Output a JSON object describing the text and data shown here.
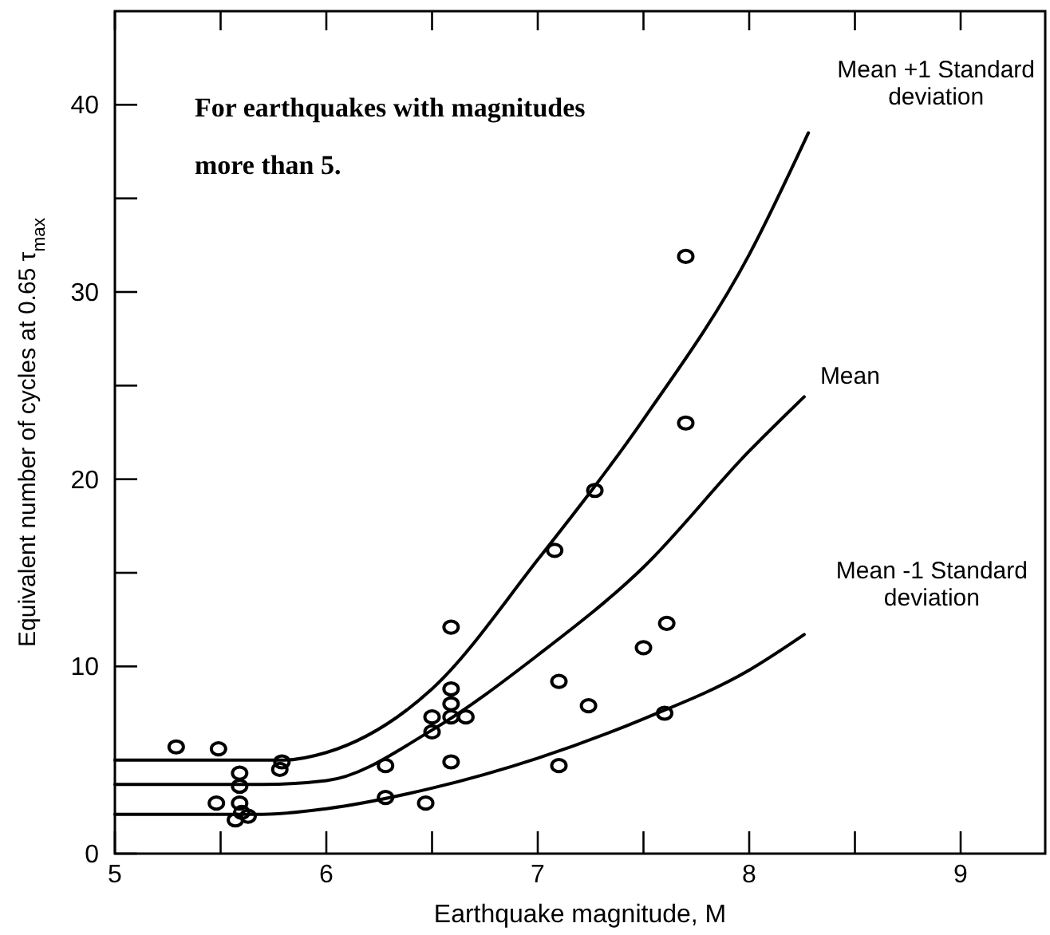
{
  "chart_data": {
    "type": "scatter",
    "xlabel": "Earthquake magnitude, M",
    "ylabel": "Equivalent number of cycles at 0.65 τ$_{max}$",
    "xlim": [
      5,
      9.4
    ],
    "ylim": [
      0,
      45
    ],
    "xticks": [
      5,
      {
        "value": 5.5,
        "label": null
      },
      6,
      {
        "value": 6.5,
        "label": null
      },
      7,
      {
        "value": 7.5,
        "label": null
      },
      8,
      {
        "value": 8.5,
        "label": null
      },
      9
    ],
    "yticks": [
      0,
      {
        "value": 5,
        "label": null
      },
      10,
      {
        "value": 15,
        "label": null
      },
      20,
      {
        "value": 25,
        "label": null
      },
      30,
      {
        "value": 35,
        "label": null
      },
      40
    ],
    "grid": false,
    "marker": "circle",
    "annotations": [
      "For earthquakes with magnitudes more than 5."
    ],
    "series": [
      {
        "color": "#000000",
        "x": [
          5.29,
          5.49,
          5.48,
          5.59,
          5.59,
          5.59,
          5.57,
          5.63,
          5.6,
          5.79,
          5.78,
          6.28,
          6.28,
          6.47,
          6.5,
          6.5,
          6.59,
          6.59,
          6.59,
          6.59,
          6.66,
          6.59,
          7.1,
          7.1,
          7.08,
          7.7,
          7.7,
          7.27,
          7.61,
          7.5,
          7.24,
          7.6
        ],
        "values": [
          5.7,
          5.6,
          2.7,
          4.3,
          3.6,
          2.7,
          1.8,
          2.0,
          2.2,
          4.9,
          4.5,
          4.7,
          3.0,
          2.7,
          7.3,
          6.5,
          12.1,
          8.8,
          8.0,
          7.3,
          7.3,
          4.9,
          9.2,
          4.7,
          16.2,
          31.9,
          23.0,
          19.4,
          12.3,
          11.0,
          7.9,
          7.5
        ]
      },
      {
        "type": "line",
        "name": "Mean +1 Standard deviation",
        "color": "#000000",
        "marker": "none",
        "line_style": "solid",
        "x": [
          5,
          5.5,
          5.8,
          6,
          6.5,
          7,
          7.5,
          8,
          8.28
        ],
        "values": [
          5.0,
          5.0,
          5.0,
          5.4,
          8.8,
          15.7,
          23.2,
          32.0,
          38.5
        ]
      },
      {
        "type": "line",
        "name": "Mean",
        "color": "#000000",
        "marker": "none",
        "line_style": "solid",
        "x": [
          5,
          5.5,
          5.7,
          6,
          6.5,
          7,
          7.5,
          8,
          8.26
        ],
        "values": [
          3.7,
          3.7,
          3.7,
          3.9,
          6.6,
          10.6,
          15.3,
          21.5,
          24.4
        ]
      },
      {
        "type": "line",
        "name": "Mean -1 Standard deviation",
        "color": "#000000",
        "marker": "none",
        "line_style": "solid",
        "x": [
          5,
          5.5,
          5.7,
          6,
          6.5,
          7,
          7.5,
          8,
          8.26
        ],
        "values": [
          2.1,
          2.1,
          2.1,
          2.4,
          3.5,
          5.1,
          7.2,
          9.8,
          11.7
        ]
      }
    ]
  }
}
